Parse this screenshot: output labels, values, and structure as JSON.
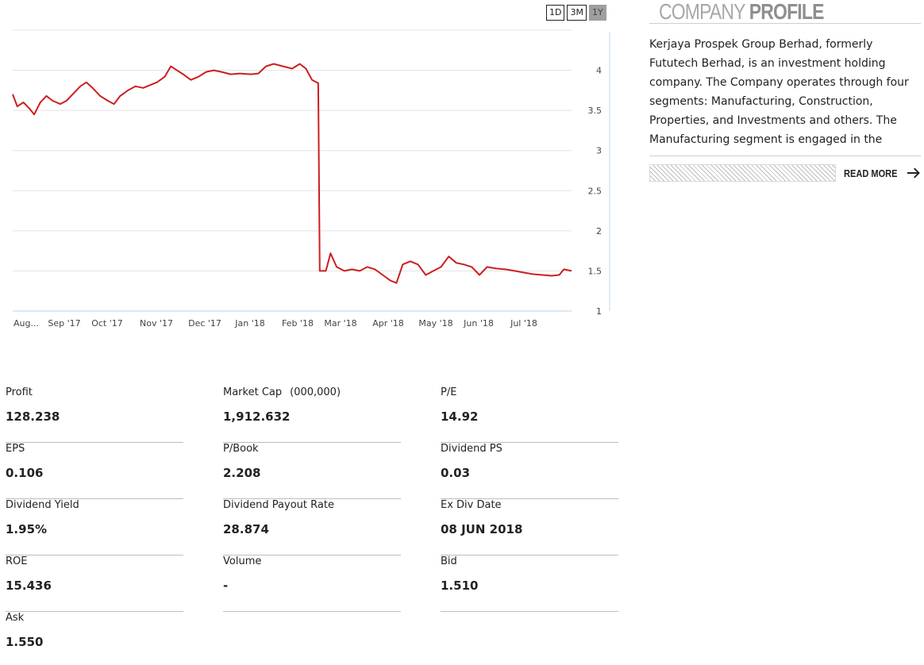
{
  "range_buttons": [
    {
      "label": "1D",
      "active": false
    },
    {
      "label": "3M",
      "active": false
    },
    {
      "label": "1Y",
      "active": true
    }
  ],
  "chart_data": {
    "type": "line",
    "title": "",
    "xlabel": "",
    "ylabel": "",
    "ylim": [
      1,
      4.5
    ],
    "y_ticks": [
      "1",
      "1.5",
      "2",
      "2.5",
      "3",
      "3.5",
      "4"
    ],
    "x_tick_labels": [
      "Aug...",
      "Sep '17",
      "Oct '17",
      "Nov '17",
      "Dec '17",
      "Jan '18",
      "Feb '18",
      "Mar '18",
      "Apr '18",
      "May '18",
      "Jun '18",
      "Jul '18"
    ],
    "line_color": "#cc1f1f",
    "grid": true,
    "x_range": [
      "2017-08-01",
      "2018-07-31"
    ],
    "series": [
      {
        "values": [
          [
            "2017-08-01",
            3.7
          ],
          [
            "2017-08-04",
            3.55
          ],
          [
            "2017-08-08",
            3.6
          ],
          [
            "2017-08-12",
            3.52
          ],
          [
            "2017-08-15",
            3.45
          ],
          [
            "2017-08-19",
            3.6
          ],
          [
            "2017-08-23",
            3.68
          ],
          [
            "2017-08-27",
            3.62
          ],
          [
            "2017-09-01",
            3.58
          ],
          [
            "2017-09-05",
            3.62
          ],
          [
            "2017-09-10",
            3.72
          ],
          [
            "2017-09-14",
            3.8
          ],
          [
            "2017-09-18",
            3.85
          ],
          [
            "2017-09-22",
            3.78
          ],
          [
            "2017-09-27",
            3.68
          ],
          [
            "2017-10-02",
            3.62
          ],
          [
            "2017-10-06",
            3.58
          ],
          [
            "2017-10-10",
            3.68
          ],
          [
            "2017-10-15",
            3.75
          ],
          [
            "2017-10-20",
            3.8
          ],
          [
            "2017-10-25",
            3.78
          ],
          [
            "2017-10-30",
            3.82
          ],
          [
            "2017-11-03",
            3.85
          ],
          [
            "2017-11-08",
            3.92
          ],
          [
            "2017-11-12",
            4.05
          ],
          [
            "2017-11-16",
            4.0
          ],
          [
            "2017-11-20",
            3.95
          ],
          [
            "2017-11-25",
            3.88
          ],
          [
            "2017-11-30",
            3.92
          ],
          [
            "2017-12-05",
            3.98
          ],
          [
            "2017-12-10",
            4.0
          ],
          [
            "2017-12-15",
            3.98
          ],
          [
            "2017-12-21",
            3.95
          ],
          [
            "2017-12-27",
            3.96
          ],
          [
            "2018-01-03",
            3.95
          ],
          [
            "2018-01-08",
            3.96
          ],
          [
            "2018-01-13",
            4.05
          ],
          [
            "2018-01-18",
            4.08
          ],
          [
            "2018-01-24",
            4.05
          ],
          [
            "2018-01-30",
            4.02
          ],
          [
            "2018-02-04",
            4.08
          ],
          [
            "2018-02-08",
            4.02
          ],
          [
            "2018-02-12",
            3.88
          ],
          [
            "2018-02-16",
            3.84
          ],
          [
            "2018-02-17",
            1.5
          ],
          [
            "2018-02-21",
            1.5
          ],
          [
            "2018-02-24",
            1.72
          ],
          [
            "2018-02-28",
            1.55
          ],
          [
            "2018-03-05",
            1.5
          ],
          [
            "2018-03-10",
            1.52
          ],
          [
            "2018-03-15",
            1.5
          ],
          [
            "2018-03-20",
            1.55
          ],
          [
            "2018-03-25",
            1.52
          ],
          [
            "2018-03-30",
            1.45
          ],
          [
            "2018-04-04",
            1.38
          ],
          [
            "2018-04-08",
            1.35
          ],
          [
            "2018-04-12",
            1.58
          ],
          [
            "2018-04-17",
            1.62
          ],
          [
            "2018-04-22",
            1.58
          ],
          [
            "2018-04-27",
            1.45
          ],
          [
            "2018-05-02",
            1.5
          ],
          [
            "2018-05-07",
            1.55
          ],
          [
            "2018-05-12",
            1.68
          ],
          [
            "2018-05-17",
            1.6
          ],
          [
            "2018-05-22",
            1.58
          ],
          [
            "2018-05-27",
            1.55
          ],
          [
            "2018-06-01",
            1.45
          ],
          [
            "2018-06-06",
            1.55
          ],
          [
            "2018-06-12",
            1.53
          ],
          [
            "2018-06-18",
            1.52
          ],
          [
            "2018-06-24",
            1.5
          ],
          [
            "2018-06-30",
            1.48
          ],
          [
            "2018-07-06",
            1.46
          ],
          [
            "2018-07-12",
            1.45
          ],
          [
            "2018-07-18",
            1.44
          ],
          [
            "2018-07-23",
            1.45
          ],
          [
            "2018-07-26",
            1.52
          ],
          [
            "2018-07-31",
            1.5
          ]
        ]
      }
    ]
  },
  "profile": {
    "title_light": "COMPANY",
    "title_bold": "PROFILE",
    "text": "Kerjaya Prospek Group Berhad, formerly Fututech Berhad, is an investment holding company. The Company operates through four segments: Manufacturing, Construction, Properties, and Investments and others. The Manufacturing segment is engaged in the man...",
    "read_more": "READ MORE",
    "arrow_icon": "arrow-right-icon"
  },
  "stats": [
    {
      "label": "Profit",
      "value": "128.238"
    },
    {
      "label": "Market Cap",
      "unit": "(000,000)",
      "value": "1,912.632"
    },
    {
      "label": "P/E",
      "value": "14.92"
    },
    {
      "label": "EPS",
      "value": "0.106"
    },
    {
      "label": "P/Book",
      "value": "2.208"
    },
    {
      "label": "Dividend PS",
      "value": "0.03"
    },
    {
      "label": "Dividend Yield",
      "value": "1.95%"
    },
    {
      "label": "Dividend Payout Rate",
      "value": "28.874"
    },
    {
      "label": "Ex Div Date",
      "value": "08 JUN 2018"
    },
    {
      "label": "ROE",
      "value": "15.436"
    },
    {
      "label": "Volume",
      "value": "-"
    },
    {
      "label": "Bid",
      "value": "1.510"
    },
    {
      "label": "Ask",
      "value": "1.550"
    }
  ]
}
